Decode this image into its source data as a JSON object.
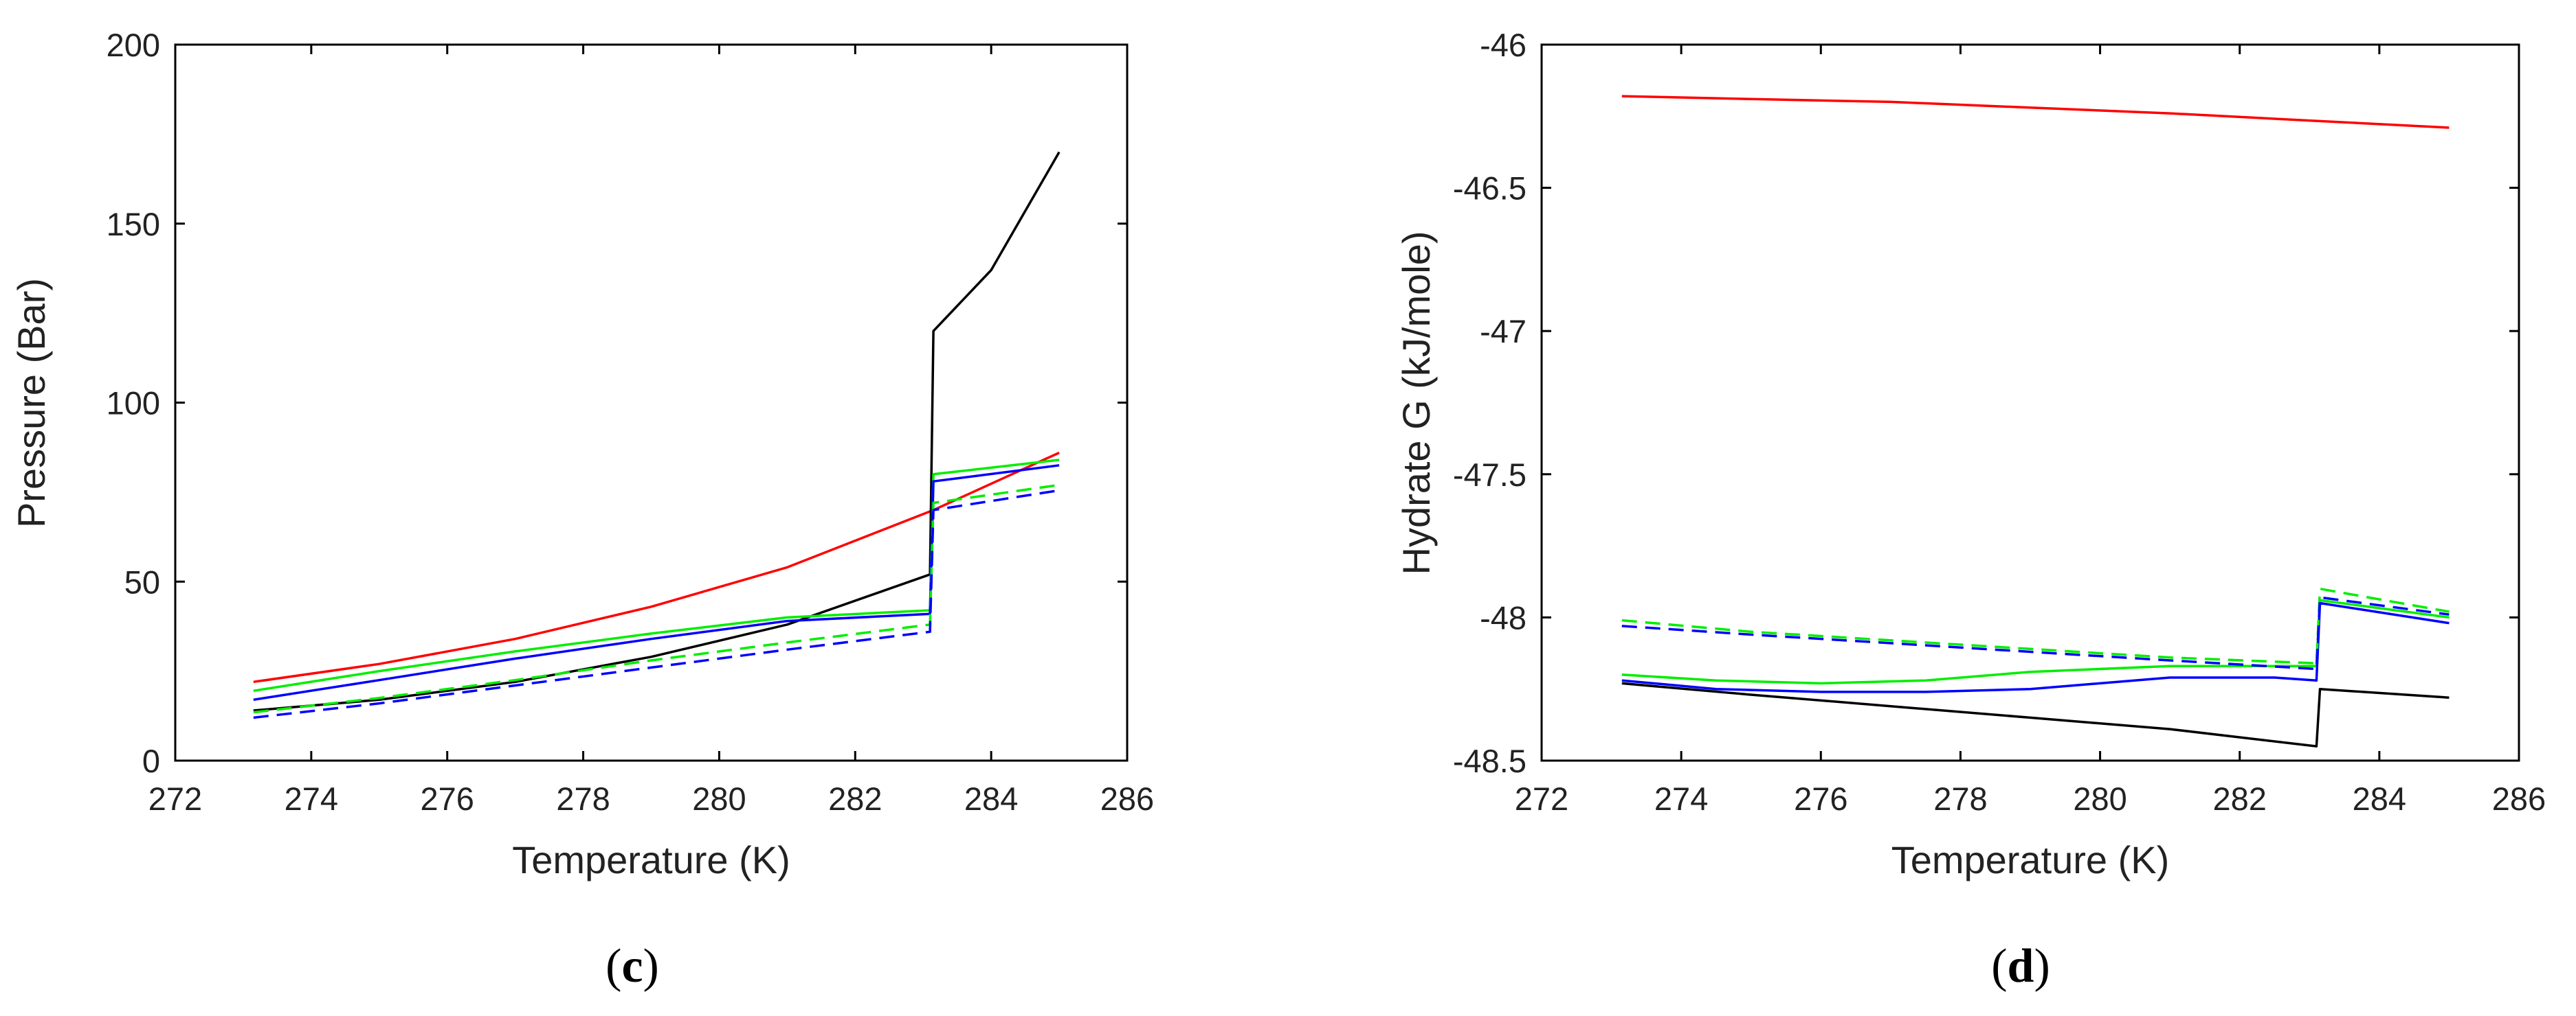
{
  "chart_data": [
    {
      "type": "line",
      "panel_label": "c",
      "xlabel": "Temperature (K)",
      "ylabel": "Pressure (Bar)",
      "xlim": [
        272,
        286
      ],
      "ylim": [
        0,
        200
      ],
      "xticks": [
        "272",
        "274",
        "276",
        "278",
        "280",
        "282",
        "284",
        "286"
      ],
      "yticks": [
        "0",
        "50",
        "100",
        "150",
        "200"
      ],
      "series": [
        {
          "name": "red",
          "color": "#ff0000",
          "dash": false,
          "x": [
            273.15,
            275,
            277,
            279,
            281,
            283.15,
            285
          ],
          "y": [
            22,
            27,
            34,
            43,
            54,
            70,
            86
          ]
        },
        {
          "name": "black",
          "color": "#000000",
          "dash": false,
          "x": [
            273.15,
            275,
            277,
            279,
            281,
            283.1,
            283.15,
            284,
            285
          ],
          "y": [
            14,
            17,
            22,
            29,
            38,
            52,
            120,
            137,
            170
          ]
        },
        {
          "name": "green",
          "color": "#00ee00",
          "dash": false,
          "x": [
            273.15,
            275,
            277,
            279,
            281,
            283.1,
            283.15,
            285
          ],
          "y": [
            19.5,
            25,
            30.5,
            35.5,
            40,
            42,
            80,
            84
          ]
        },
        {
          "name": "blue",
          "color": "#0000ff",
          "dash": false,
          "x": [
            273.15,
            275,
            277,
            279,
            281,
            283.1,
            283.15,
            285
          ],
          "y": [
            17,
            22.5,
            28.5,
            34,
            39,
            41,
            78,
            82.5
          ]
        },
        {
          "name": "green-dashed",
          "color": "#00ee00",
          "dash": true,
          "x": [
            273.15,
            275,
            277,
            279,
            281,
            283.1,
            283.15,
            285
          ],
          "y": [
            13.5,
            17.5,
            22.5,
            28,
            33,
            38,
            72,
            77
          ]
        },
        {
          "name": "blue-dashed",
          "color": "#0000ff",
          "dash": true,
          "x": [
            273.15,
            275,
            277,
            279,
            281,
            283.1,
            283.15,
            285
          ],
          "y": [
            12,
            16,
            21,
            26,
            31,
            36,
            70,
            75.5
          ]
        }
      ]
    },
    {
      "type": "line",
      "panel_label": "d",
      "xlabel": "Temperature (K)",
      "ylabel": "Hydrate G (kJ/mole)",
      "xlim": [
        272,
        286
      ],
      "ylim": [
        -48.5,
        -46
      ],
      "xticks": [
        "272",
        "274",
        "276",
        "278",
        "280",
        "282",
        "284",
        "286"
      ],
      "yticks": [
        "-48.5",
        "-48",
        "-47.5",
        "-47",
        "-46.5",
        "-46"
      ],
      "series": [
        {
          "name": "red",
          "color": "#ff0000",
          "dash": false,
          "x": [
            273.15,
            275,
            277,
            279,
            281,
            283,
            285
          ],
          "y": [
            -46.18,
            -46.19,
            -46.2,
            -46.22,
            -46.24,
            -46.265,
            -46.29
          ]
        },
        {
          "name": "black",
          "color": "#000000",
          "dash": false,
          "x": [
            273.15,
            275,
            277,
            279,
            281,
            283.1,
            283.15,
            285
          ],
          "y": [
            -48.23,
            -48.27,
            -48.31,
            -48.35,
            -48.39,
            -48.45,
            -48.25,
            -48.28
          ]
        },
        {
          "name": "green",
          "color": "#00ee00",
          "dash": false,
          "x": [
            273.15,
            274.5,
            276,
            277.5,
            279,
            281,
            283.1,
            283.15,
            285
          ],
          "y": [
            -48.2,
            -48.22,
            -48.23,
            -48.22,
            -48.19,
            -48.17,
            -48.17,
            -47.94,
            -48.0
          ]
        },
        {
          "name": "blue",
          "color": "#0000ff",
          "dash": false,
          "x": [
            273.15,
            274.5,
            276,
            277.5,
            279,
            281,
            282.5,
            283.1,
            283.15,
            285
          ],
          "y": [
            -48.22,
            -48.25,
            -48.26,
            -48.26,
            -48.25,
            -48.21,
            -48.21,
            -48.22,
            -47.95,
            -48.02
          ]
        },
        {
          "name": "green-dashed",
          "color": "#00ee00",
          "dash": true,
          "x": [
            273.15,
            275,
            277,
            279,
            281,
            283.1,
            283.15,
            285
          ],
          "y": [
            -48.01,
            -48.05,
            -48.08,
            -48.11,
            -48.14,
            -48.16,
            -47.9,
            -47.98
          ]
        },
        {
          "name": "blue-dashed",
          "color": "#0000ff",
          "dash": true,
          "x": [
            273.15,
            275,
            277,
            279,
            281,
            283.1,
            283.15,
            285
          ],
          "y": [
            -48.03,
            -48.06,
            -48.09,
            -48.12,
            -48.15,
            -48.18,
            -47.93,
            -47.99
          ]
        }
      ]
    }
  ]
}
